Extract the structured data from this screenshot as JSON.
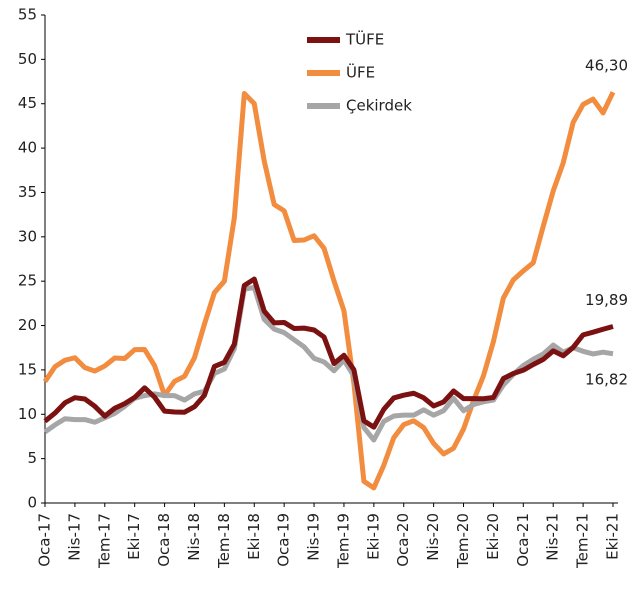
{
  "chart_data": {
    "type": "line",
    "categories": [
      "Oca-17",
      null,
      null,
      "Nis-17",
      null,
      null,
      "Tem-17",
      null,
      null,
      "Eki-17",
      null,
      null,
      "Oca-18",
      null,
      null,
      "Nis-18",
      null,
      null,
      "Tem-18",
      null,
      null,
      "Eki-18",
      null,
      null,
      "Oca-19",
      null,
      null,
      "Nis-19",
      null,
      null,
      "Tem-19",
      null,
      null,
      "Eki-19",
      null,
      null,
      "Oca-20",
      null,
      null,
      "Nis-20",
      null,
      null,
      "Tem-20",
      null,
      null,
      "Eki-20",
      null,
      null,
      "Oca-21",
      null,
      null,
      "Nis-21",
      null,
      null,
      "Tem-21",
      null,
      null,
      "Eki-21"
    ],
    "series": [
      {
        "name": "TÜFE",
        "color": "#7b1111",
        "values": [
          9.22,
          10.13,
          11.29,
          11.87,
          11.72,
          10.9,
          9.79,
          10.68,
          11.2,
          11.9,
          12.98,
          11.92,
          10.35,
          10.26,
          10.23,
          10.85,
          12.15,
          15.39,
          15.85,
          17.9,
          24.52,
          25.24,
          21.62,
          20.3,
          20.35,
          19.67,
          19.71,
          19.5,
          18.71,
          15.72,
          16.65,
          15.01,
          9.26,
          8.55,
          10.56,
          11.84,
          12.15,
          12.37,
          11.86,
          10.94,
          11.39,
          12.62,
          11.76,
          11.77,
          11.75,
          11.89,
          14.03,
          14.6,
          14.97,
          15.61,
          16.19,
          17.14,
          16.59,
          17.53,
          18.95,
          19.25,
          19.58,
          19.89
        ],
        "value_labels": [
          null,
          null,
          null,
          null,
          null,
          null,
          null,
          null,
          null,
          null,
          null,
          null,
          null,
          null,
          null,
          null,
          null,
          null,
          null,
          null,
          null,
          null,
          null,
          null,
          null,
          null,
          null,
          null,
          null,
          null,
          null,
          null,
          null,
          null,
          null,
          null,
          null,
          null,
          null,
          null,
          null,
          null,
          null,
          null,
          null,
          null,
          null,
          null,
          null,
          null,
          null,
          null,
          null,
          null,
          null,
          null,
          null,
          "19,89"
        ]
      },
      {
        "name": "ÜFE",
        "color": "#f28c3e",
        "values": [
          13.69,
          15.36,
          16.09,
          16.37,
          15.26,
          14.87,
          15.45,
          16.34,
          16.28,
          17.28,
          17.3,
          15.47,
          12.14,
          13.71,
          14.28,
          16.37,
          20.16,
          23.71,
          25.0,
          32.13,
          46.15,
          45.01,
          38.54,
          33.64,
          32.93,
          29.59,
          29.64,
          30.12,
          28.71,
          25.04,
          21.66,
          13.45,
          2.45,
          1.7,
          4.26,
          7.36,
          8.84,
          9.26,
          8.5,
          6.71,
          5.53,
          6.17,
          8.33,
          11.53,
          14.33,
          18.2,
          23.11,
          25.15,
          26.16,
          27.09,
          31.2,
          35.17,
          38.33,
          42.89,
          44.92,
          45.52,
          43.96,
          46.3
        ],
        "value_labels": [
          null,
          null,
          null,
          null,
          null,
          null,
          null,
          null,
          null,
          null,
          null,
          null,
          null,
          null,
          null,
          null,
          null,
          null,
          null,
          null,
          null,
          null,
          null,
          null,
          null,
          null,
          null,
          null,
          null,
          null,
          null,
          null,
          null,
          null,
          null,
          null,
          null,
          null,
          null,
          null,
          null,
          null,
          null,
          null,
          null,
          null,
          null,
          null,
          null,
          null,
          null,
          null,
          null,
          null,
          null,
          null,
          null,
          "46,30"
        ]
      },
      {
        "name": "Çekirdek",
        "color": "#a6a6a6",
        "values": [
          8.0,
          8.8,
          9.5,
          9.4,
          9.4,
          9.1,
          9.6,
          10.1,
          10.9,
          11.8,
          12.1,
          12.3,
          12.1,
          12.1,
          11.6,
          12.3,
          12.6,
          14.6,
          15.1,
          17.4,
          24.1,
          24.3,
          20.7,
          19.6,
          19.2,
          18.4,
          17.6,
          16.3,
          15.9,
          14.9,
          16.1,
          14.3,
          8.5,
          7.1,
          9.2,
          9.8,
          9.9,
          9.9,
          10.5,
          9.9,
          10.4,
          11.8,
          10.4,
          11.1,
          11.4,
          11.6,
          13.3,
          14.5,
          15.5,
          16.2,
          16.8,
          17.8,
          17.0,
          17.5,
          17.1,
          16.8,
          17.0,
          16.82
        ],
        "value_labels": [
          null,
          null,
          null,
          null,
          null,
          null,
          null,
          null,
          null,
          null,
          null,
          null,
          null,
          null,
          null,
          null,
          null,
          null,
          null,
          null,
          null,
          null,
          null,
          null,
          null,
          null,
          null,
          null,
          null,
          null,
          null,
          null,
          null,
          null,
          null,
          null,
          null,
          null,
          null,
          null,
          null,
          null,
          null,
          null,
          null,
          null,
          null,
          null,
          null,
          null,
          null,
          null,
          null,
          null,
          null,
          null,
          null,
          "16,82"
        ]
      }
    ],
    "ylim": [
      0,
      55
    ],
    "yticks": [
      0,
      5,
      10,
      15,
      20,
      25,
      30,
      35,
      40,
      45,
      50,
      55
    ],
    "grid": false,
    "legend": "upper center"
  }
}
